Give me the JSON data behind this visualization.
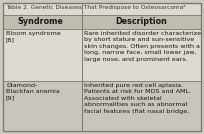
{
  "title": "Table 2. Genetic Diseases That Predispose to Osteosarcomaᵃ",
  "col_headers": [
    "Syndrome",
    "Description"
  ],
  "rows": [
    {
      "syndrome": "Bloom syndrome\n[8]",
      "description": "Rare inherited disorder characterize\nby short stature and sun-sensitive\nskin changes. Often presents with a\nlong, narrow face, small lower jaw,\nlarge nose, and prominent ears."
    },
    {
      "syndrome": "Diamond-\nBlackfan anemia\n[9]",
      "description": "Inherited pure red cell aplasia.\nPatients at risk for MDS and AML.\nAssociated with skeletal\nabnormalities such as abnormal\nfacial features (flat nasal bridge,"
    }
  ],
  "outer_bg": "#cdc9be",
  "table_bg_light": "#dedad2",
  "table_bg_dark": "#c9c5bc",
  "header_bg": "#bfbcb2",
  "border_color": "#7a7870",
  "title_color": "#3a3830",
  "cell_color": "#1a1810",
  "title_fontsize": 4.2,
  "header_fontsize": 5.8,
  "cell_fontsize": 4.6,
  "col_split": 0.4
}
